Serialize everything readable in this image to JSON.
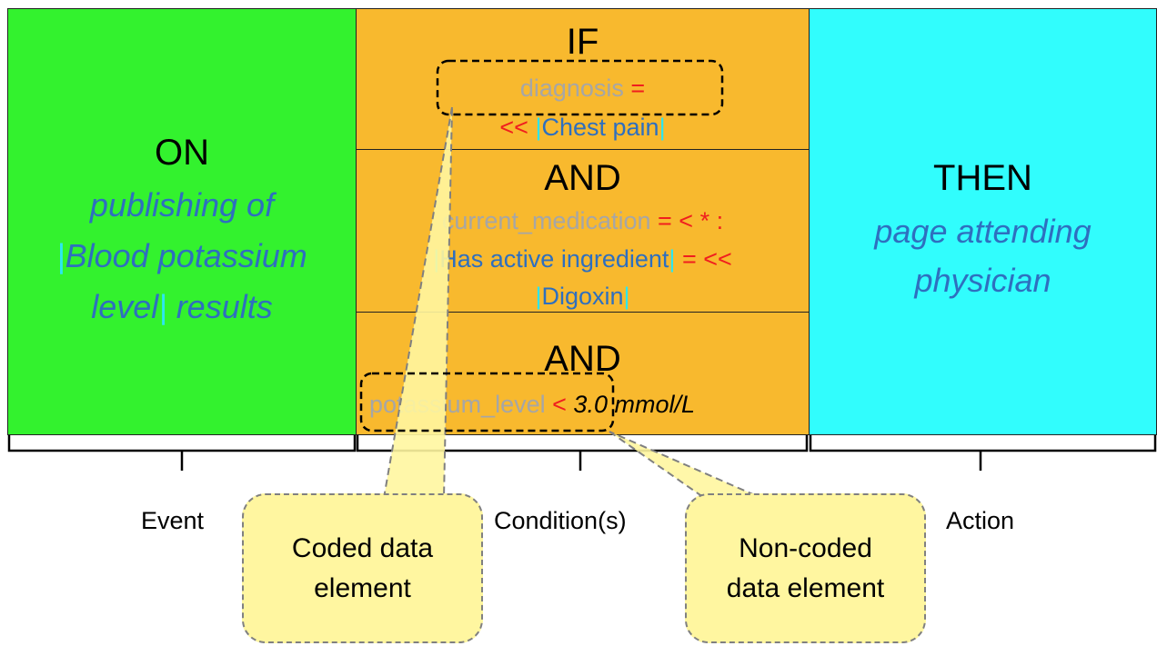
{
  "event": {
    "keyword": "ON",
    "line1": "publishing of",
    "line2_text": "Blood potassium",
    "line3_text": "level",
    "line3_suffix": "results",
    "label": "Event"
  },
  "conditions": {
    "label": "Condition(s)",
    "c1": {
      "keyword": "IF",
      "attr": "diagnosis",
      "op": "=",
      "op2": "<<",
      "concept": "Chest pain"
    },
    "c2": {
      "keyword": "AND",
      "attr": "current_medication",
      "op": "= < * :",
      "rel": "Has active ingredient",
      "op2": "= <<",
      "concept": "Digoxin"
    },
    "c3": {
      "keyword": "AND",
      "attr": "potassium_level",
      "op": "<",
      "value": "3.0 mmol/L"
    }
  },
  "action": {
    "keyword": "THEN",
    "line1": "page attending",
    "line2": "physician",
    "label": "Action"
  },
  "callouts": {
    "coded": "Coded data element",
    "noncoded": "Non-coded data element"
  },
  "colors": {
    "event_bg": "#33f22e",
    "condition_bg": "#f8b92e",
    "action_bg": "#31fdfd",
    "callout_bg": "#fff6a0"
  }
}
